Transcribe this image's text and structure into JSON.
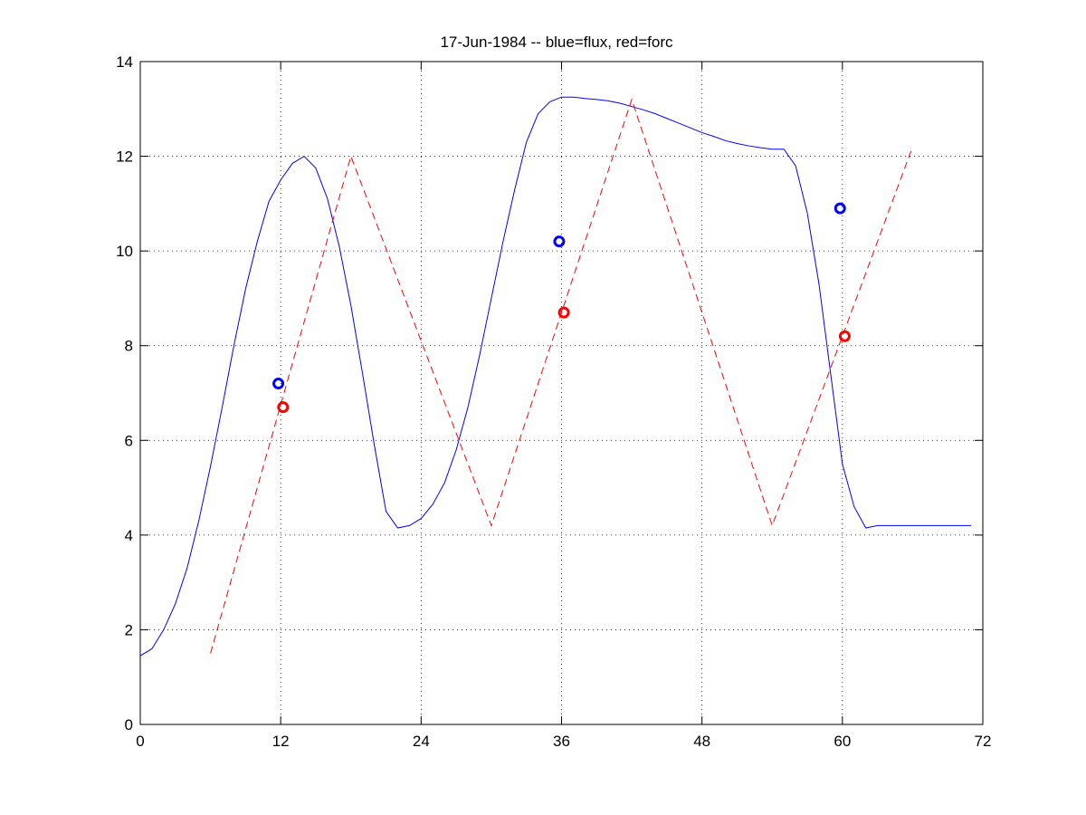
{
  "chart_data": {
    "type": "line",
    "title": "17-Jun-1984 -- blue=flux, red=forc",
    "xlabel": "",
    "ylabel": "",
    "xlim": [
      0,
      72
    ],
    "ylim": [
      0,
      14
    ],
    "xticks": [
      0,
      12,
      24,
      36,
      48,
      60,
      72
    ],
    "yticks": [
      0,
      2,
      4,
      6,
      8,
      10,
      12,
      14
    ],
    "grid": true,
    "series": [
      {
        "color": "#0000ff",
        "style": "solid",
        "x": [
          0,
          1,
          2,
          3,
          4,
          5,
          6,
          7,
          8,
          9,
          10,
          11,
          12,
          13,
          14,
          15,
          16,
          17,
          18,
          19,
          20,
          21,
          22,
          23,
          24,
          25,
          26,
          27,
          28,
          29,
          30,
          31,
          32,
          33,
          34,
          35,
          36,
          37,
          38,
          39,
          40,
          41,
          42,
          43,
          44,
          45,
          46,
          47,
          48,
          49,
          50,
          51,
          52,
          53,
          54,
          55,
          56,
          57,
          58,
          59,
          60,
          61,
          62,
          63,
          64,
          65,
          66,
          67,
          68,
          69,
          70,
          71
        ],
        "values": [
          1.45,
          1.6,
          2.0,
          2.55,
          3.3,
          4.3,
          5.45,
          6.7,
          8.0,
          9.2,
          10.2,
          11.05,
          11.5,
          11.85,
          12.0,
          11.75,
          11.1,
          10.1,
          8.85,
          7.4,
          5.9,
          4.5,
          4.15,
          4.2,
          4.35,
          4.65,
          5.1,
          5.8,
          6.7,
          7.8,
          9.0,
          10.2,
          11.3,
          12.3,
          12.9,
          13.15,
          13.25,
          13.25,
          13.22,
          13.2,
          13.17,
          13.12,
          13.05,
          12.98,
          12.9,
          12.8,
          12.7,
          12.6,
          12.5,
          12.42,
          12.33,
          12.27,
          12.22,
          12.18,
          12.15,
          12.15,
          11.8,
          10.8,
          9.3,
          7.4,
          5.5,
          4.6,
          4.15,
          4.2,
          4.2,
          4.2,
          4.2,
          4.2,
          4.2,
          4.2,
          4.2,
          4.2
        ]
      },
      {
        "color": "#ff0000",
        "style": "dashed",
        "x": [
          6,
          18,
          30,
          42,
          54,
          66
        ],
        "values": [
          1.5,
          12.0,
          4.2,
          13.2,
          4.2,
          12.2
        ]
      }
    ],
    "markers": [
      {
        "color": "#0000ff",
        "x": 11.8,
        "y": 7.2
      },
      {
        "color": "#ff0000",
        "x": 12.2,
        "y": 6.7
      },
      {
        "color": "#0000ff",
        "x": 35.8,
        "y": 10.2
      },
      {
        "color": "#ff0000",
        "x": 36.2,
        "y": 8.7
      },
      {
        "color": "#0000ff",
        "x": 59.8,
        "y": 10.9
      },
      {
        "color": "#ff0000",
        "x": 60.2,
        "y": 8.2
      }
    ]
  }
}
